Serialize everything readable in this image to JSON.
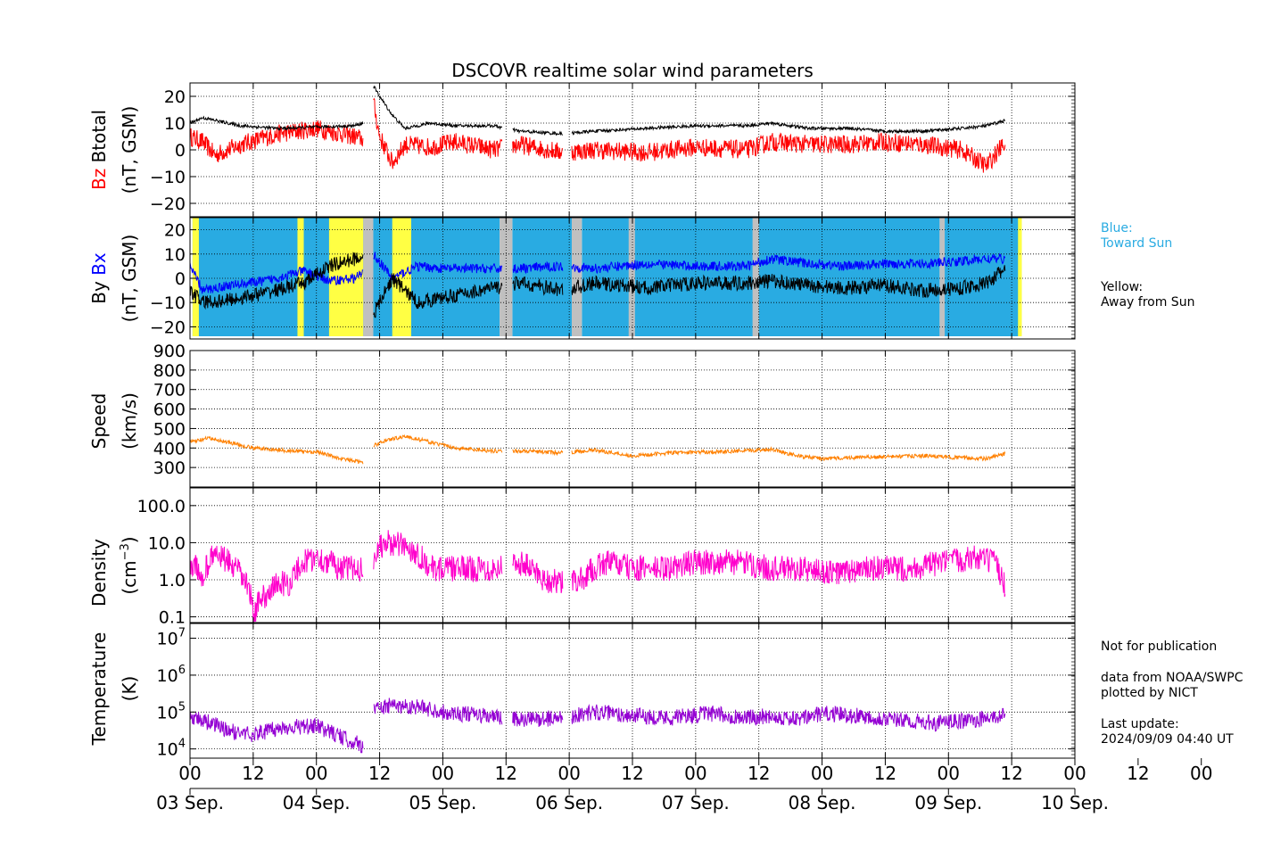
{
  "title": "DSCOVR realtime solar wind parameters",
  "x_axis": {
    "hour_ticks": [
      "00",
      "12",
      "00",
      "12",
      "00",
      "12",
      "00",
      "12",
      "00",
      "12",
      "00",
      "12",
      "00",
      "12",
      "00",
      "12",
      "00"
    ],
    "date_ticks": [
      "03 Sep.",
      "04 Sep.",
      "05 Sep.",
      "06 Sep.",
      "07 Sep.",
      "08 Sep.",
      "09 Sep.",
      "10 Sep."
    ],
    "range": [
      "2024-09-03 00:00",
      "2024-09-10 00:00"
    ]
  },
  "panels": {
    "bfield": {
      "ylabel_line1_a": "Bz",
      "ylabel_line1_b": "Btotal",
      "ylabel_line2": "(nT, GSM)",
      "ylim": [
        -25,
        25
      ],
      "ticks": [
        "20",
        "10",
        "0",
        "−10",
        "−20"
      ],
      "colors": {
        "Bz": "#ff0000",
        "Btotal": "#000000"
      }
    },
    "bxby": {
      "ylabel_line1_a": "By",
      "ylabel_line1_b": "Bx",
      "ylabel_line2": "(nT, GSM)",
      "ylim": [
        -25,
        25
      ],
      "ticks": [
        "20",
        "10",
        "0",
        "−10",
        "−20"
      ],
      "colors": {
        "Bx": "#0000ff",
        "By": "#000000",
        "toward": "#29abe2",
        "away": "#ffff44",
        "gap": "#c0c0c0"
      }
    },
    "speed": {
      "ylabel_line1": "Speed",
      "ylabel_line2": "(km/s)",
      "ylim": [
        200,
        900
      ],
      "ticks": [
        "900",
        "800",
        "700",
        "600",
        "500",
        "400",
        "300"
      ],
      "color": "#ff8000"
    },
    "density": {
      "ylabel_line1": "Density",
      "ylabel_line2": "(cm",
      "ylabel_sup": "−3",
      "ylabel_close": ")",
      "scale": "log",
      "ticks": [
        "100.0",
        "10.0",
        "1.0",
        "0.1"
      ],
      "color": "#ff00cc"
    },
    "temperature": {
      "ylabel_line1": "Temperature",
      "ylabel_line2": "(K)",
      "scale": "log",
      "ticks": [
        {
          "base": "10",
          "exp": "7"
        },
        {
          "base": "10",
          "exp": "6"
        },
        {
          "base": "10",
          "exp": "5"
        },
        {
          "base": "10",
          "exp": "4"
        }
      ],
      "color": "#9400d3"
    }
  },
  "legend": {
    "blue_title": "Blue:",
    "blue_text": "Toward Sun",
    "yellow_title": "Yellow:",
    "yellow_text": "Away from Sun",
    "blue_color": "#29abe2"
  },
  "footer": {
    "line1": "Not for publication",
    "line2": "data from NOAA/SWPC",
    "line3": "plotted by NICT",
    "line4": "Last update:",
    "line5": "2024/09/09 04:40 UT"
  },
  "chart_data": [
    {
      "type": "line",
      "title": "DSCOVR realtime solar wind parameters",
      "ylabel": "Bz Btotal (nT, GSM)",
      "ylim": [
        -25,
        25
      ],
      "x_unit": "days since 2024-09-03 00:00 UT",
      "series": [
        {
          "name": "Btotal",
          "color": "#000000",
          "x": [
            0.0,
            0.1,
            0.2,
            0.4,
            0.7,
            1.0,
            1.3,
            1.37,
            1.45,
            1.5,
            1.6,
            1.7,
            1.9,
            2.1,
            2.4,
            2.6,
            2.95,
            3.2,
            3.6,
            4.0,
            4.4,
            4.6,
            4.9,
            5.2,
            5.5,
            5.8,
            6.1,
            6.3,
            6.45
          ],
          "y": [
            10,
            12,
            11,
            9,
            8,
            8.5,
            9,
            10,
            24,
            20,
            13,
            8,
            10,
            9,
            9,
            7,
            6,
            7,
            8,
            9,
            9,
            10,
            8,
            8,
            7,
            7,
            8,
            9,
            11
          ]
        },
        {
          "name": "Bz",
          "color": "#ff0000",
          "x": [
            0.0,
            0.1,
            0.2,
            0.4,
            0.7,
            1.0,
            1.3,
            1.37,
            1.45,
            1.5,
            1.6,
            1.7,
            1.9,
            2.1,
            2.4,
            2.6,
            2.95,
            3.2,
            3.6,
            4.0,
            4.4,
            4.6,
            4.9,
            5.2,
            5.5,
            5.8,
            6.1,
            6.3,
            6.45
          ],
          "y": [
            5,
            3,
            -2,
            2,
            6,
            8,
            5,
            4,
            18,
            5,
            -5,
            2,
            1,
            3,
            0,
            2,
            -1,
            0,
            -1,
            1,
            0,
            3,
            2,
            2,
            3,
            2,
            0,
            -6,
            3
          ]
        }
      ]
    },
    {
      "type": "line",
      "ylabel": "By Bx (nT, GSM)",
      "ylim": [
        -25,
        25
      ],
      "x_unit": "days since 2024-09-03 00:00 UT",
      "series": [
        {
          "name": "Bx",
          "color": "#0000ff",
          "x": [
            0.0,
            0.1,
            0.3,
            0.6,
            0.9,
            1.1,
            1.3,
            1.37,
            1.45,
            1.6,
            1.8,
            2.0,
            2.4,
            2.6,
            2.95,
            3.2,
            3.6,
            4.0,
            4.4,
            4.6,
            4.9,
            5.2,
            5.5,
            5.8,
            6.1,
            6.3,
            6.45
          ],
          "y": [
            5,
            -5,
            -3,
            -1,
            3,
            -1,
            0,
            2,
            10,
            0,
            5,
            4,
            4,
            4,
            5,
            4,
            6,
            5,
            5,
            8,
            6,
            5,
            6,
            6,
            7,
            8,
            8
          ]
        },
        {
          "name": "By",
          "color": "#000000",
          "x": [
            0.0,
            0.1,
            0.3,
            0.6,
            0.9,
            1.1,
            1.3,
            1.37,
            1.45,
            1.6,
            1.8,
            2.0,
            2.4,
            2.6,
            2.95,
            3.2,
            3.6,
            4.0,
            4.4,
            4.6,
            4.9,
            5.2,
            5.5,
            5.8,
            6.1,
            6.3,
            6.45
          ],
          "y": [
            -5,
            -10,
            -9,
            -6,
            -2,
            5,
            8,
            9,
            -15,
            0,
            -10,
            -8,
            -4,
            -2,
            -5,
            -2,
            -4,
            -2,
            -2,
            -1,
            -3,
            -4,
            -3,
            -5,
            -4,
            -2,
            4
          ]
        }
      ],
      "sectors": {
        "toward": [
          [
            0.02,
            2.45
          ],
          [
            2.55,
            3.02
          ],
          [
            3.1,
            5.93
          ],
          [
            5.97,
            6.58
          ]
        ],
        "away": [
          [
            0.02,
            0.07
          ],
          [
            0.85,
            0.9
          ],
          [
            1.1,
            1.37
          ],
          [
            1.6,
            1.75
          ],
          [
            6.55,
            6.58
          ]
        ],
        "gap": [
          [
            1.37,
            1.45
          ],
          [
            2.45,
            2.55
          ],
          [
            3.02,
            3.1
          ],
          [
            3.47,
            3.52
          ],
          [
            4.45,
            4.5
          ],
          [
            5.93,
            5.97
          ]
        ]
      }
    },
    {
      "type": "line",
      "ylabel": "Speed (km/s)",
      "ylim": [
        200,
        900
      ],
      "x_unit": "days since 2024-09-03 00:00 UT",
      "series": [
        {
          "name": "Speed",
          "color": "#ff8000",
          "x": [
            0.0,
            0.15,
            0.3,
            0.5,
            0.8,
            1.0,
            1.2,
            1.37,
            1.45,
            1.55,
            1.7,
            1.9,
            2.1,
            2.4,
            2.6,
            2.95,
            3.2,
            3.5,
            3.8,
            4.1,
            4.4,
            4.6,
            4.8,
            5.0,
            5.2,
            5.5,
            5.8,
            6.1,
            6.3,
            6.45
          ],
          "y": [
            430,
            450,
            430,
            400,
            385,
            380,
            345,
            325,
            410,
            440,
            460,
            430,
            400,
            385,
            385,
            375,
            390,
            360,
            375,
            380,
            385,
            395,
            360,
            345,
            350,
            355,
            360,
            350,
            345,
            370
          ]
        }
      ]
    },
    {
      "type": "line",
      "ylabel": "Density (cm−3)",
      "yscale": "log",
      "x_unit": "days since 2024-09-03 00:00 UT",
      "series": [
        {
          "name": "Density",
          "color": "#ff00cc",
          "x": [
            0.0,
            0.1,
            0.2,
            0.35,
            0.5,
            0.6,
            0.7,
            0.8,
            0.9,
            1.0,
            1.2,
            1.37,
            1.45,
            1.55,
            1.7,
            1.9,
            2.1,
            2.4,
            2.6,
            2.8,
            2.95,
            3.1,
            3.3,
            3.5,
            3.8,
            4.0,
            4.3,
            4.6,
            4.8,
            5.1,
            5.4,
            5.7,
            6.0,
            6.2,
            6.35,
            6.45
          ],
          "y": [
            3,
            1,
            5,
            2,
            0.1,
            0.4,
            0.8,
            0.8,
            3,
            4,
            2,
            2,
            4,
            10,
            8,
            2,
            2,
            2,
            3,
            1,
            0.8,
            1,
            3,
            2,
            2,
            3,
            3,
            2,
            2,
            1.5,
            2,
            2,
            3,
            4,
            3,
            0.5
          ]
        }
      ]
    },
    {
      "type": "line",
      "ylabel": "Temperature (K)",
      "yscale": "log",
      "x_unit": "days since 2024-09-03 00:00 UT",
      "series": [
        {
          "name": "Temperature",
          "color": "#9400d3",
          "x": [
            0.0,
            0.1,
            0.3,
            0.5,
            0.8,
            1.0,
            1.2,
            1.37,
            1.45,
            1.6,
            1.8,
            2.0,
            2.3,
            2.6,
            2.95,
            3.2,
            3.5,
            3.8,
            4.1,
            4.4,
            4.6,
            4.8,
            5.0,
            5.3,
            5.6,
            5.9,
            6.2,
            6.45
          ],
          "y": [
            80000,
            60000,
            30000,
            25000,
            40000,
            40000,
            20000,
            12000,
            120000,
            150000,
            140000,
            100000,
            80000,
            60000,
            70000,
            100000,
            80000,
            70000,
            90000,
            70000,
            80000,
            60000,
            90000,
            80000,
            60000,
            50000,
            60000,
            80000
          ]
        }
      ]
    }
  ]
}
